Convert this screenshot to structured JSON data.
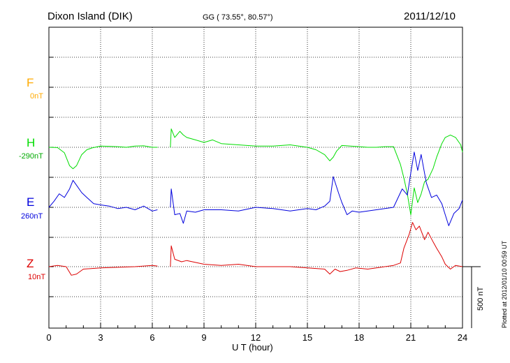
{
  "header": {
    "station": "Dixon Island (DIK)",
    "coords": "GG ( 73.55°,  80.57°)",
    "date": "2011/12/10"
  },
  "chart_data": {
    "type": "line",
    "title": "Dixon Island (DIK)",
    "xlabel": "U T (hour)",
    "ylabel": "",
    "xlim": [
      0,
      24
    ],
    "xticks": [
      "0",
      "3",
      "6",
      "9",
      "12",
      "15",
      "18",
      "21",
      "24"
    ],
    "grid": true,
    "scale_bar_label": "500 nT",
    "scale_bar_nT": 500,
    "data_gap_hours": [
      6.3,
      7.05
    ],
    "colors": {
      "F": "#ffaa00",
      "H": "#00dd00",
      "E": "#0000dd",
      "Z": "#dd0000"
    },
    "series": [
      {
        "name": "F",
        "baseline": "0nT",
        "x": [],
        "values": []
      },
      {
        "name": "H",
        "baseline": "-290nT",
        "x": [
          0,
          0.5,
          0.9,
          1.2,
          1.4,
          1.6,
          1.9,
          2.2,
          2.5,
          3.0,
          3.5,
          4.0,
          4.5,
          5.0,
          5.5,
          6.0,
          6.3,
          7.05,
          7.1,
          7.3,
          7.6,
          7.8,
          8.0,
          8.5,
          9.0,
          9.5,
          10.0,
          11.0,
          12.0,
          13.0,
          14.0,
          15.0,
          15.5,
          16.0,
          16.3,
          16.5,
          16.7,
          17.0,
          17.5,
          18.0,
          18.5,
          19.0,
          19.5,
          20.0,
          20.4,
          20.6,
          20.8,
          21.0,
          21.2,
          21.4,
          21.6,
          21.8,
          22.0,
          22.3,
          22.5,
          22.8,
          23.0,
          23.3,
          23.6,
          23.9,
          24.0
        ],
        "values": [
          0,
          -2,
          -45,
          -150,
          -175,
          -150,
          -60,
          -20,
          -5,
          10,
          8,
          5,
          0,
          10,
          12,
          0,
          0,
          0,
          150,
          80,
          130,
          100,
          80,
          60,
          40,
          60,
          30,
          20,
          10,
          10,
          20,
          0,
          -20,
          -60,
          -110,
          -80,
          -30,
          15,
          10,
          5,
          0,
          0,
          5,
          5,
          -140,
          -250,
          -380,
          -550,
          -330,
          -450,
          -380,
          -280,
          -260,
          -170,
          -80,
          30,
          80,
          100,
          80,
          20,
          -40
        ]
      },
      {
        "name": "E",
        "baseline": "260nT",
        "x": [
          0,
          0.3,
          0.6,
          0.9,
          1.2,
          1.4,
          1.6,
          1.9,
          2.2,
          2.6,
          3.0,
          3.5,
          4.0,
          4.5,
          5.0,
          5.5,
          6.0,
          6.3,
          7.05,
          7.1,
          7.3,
          7.6,
          7.8,
          8.0,
          8.5,
          9.0,
          10.0,
          11.0,
          12.0,
          13.0,
          14.0,
          15.0,
          15.5,
          16.0,
          16.3,
          16.5,
          16.8,
          17.0,
          17.3,
          17.6,
          18.0,
          19.0,
          20.0,
          20.5,
          20.8,
          21.0,
          21.2,
          21.4,
          21.6,
          21.9,
          22.2,
          22.5,
          22.8,
          23.0,
          23.2,
          23.5,
          23.8,
          24.0
        ],
        "values": [
          0,
          50,
          110,
          80,
          150,
          220,
          180,
          120,
          80,
          30,
          20,
          10,
          -10,
          0,
          -20,
          10,
          -30,
          -20,
          0,
          150,
          -60,
          -50,
          -130,
          -30,
          -40,
          -20,
          -20,
          -30,
          0,
          -10,
          -30,
          -10,
          -20,
          10,
          50,
          250,
          120,
          40,
          -60,
          -30,
          -40,
          -20,
          0,
          150,
          100,
          280,
          450,
          300,
          430,
          200,
          80,
          100,
          30,
          -60,
          -150,
          -50,
          -10,
          60
        ]
      },
      {
        "name": "Z",
        "baseline": "10nT",
        "x": [
          0,
          0.5,
          1.0,
          1.3,
          1.6,
          2.0,
          3.0,
          4.0,
          5.0,
          6.0,
          6.3,
          7.05,
          7.1,
          7.3,
          7.7,
          8.0,
          9.0,
          10.0,
          11.0,
          12.0,
          13.0,
          14.0,
          15.0,
          16.0,
          16.3,
          16.6,
          16.9,
          17.3,
          17.8,
          18.5,
          19.0,
          20.0,
          20.4,
          20.6,
          20.9,
          21.1,
          21.3,
          21.5,
          21.8,
          22.0,
          22.3,
          22.5,
          22.8,
          23.0,
          23.3,
          23.6,
          24.0
        ],
        "values": [
          0,
          10,
          0,
          -70,
          -60,
          -20,
          -10,
          -5,
          0,
          10,
          5,
          0,
          170,
          60,
          40,
          50,
          20,
          10,
          20,
          0,
          0,
          0,
          -10,
          -20,
          -60,
          -20,
          -40,
          -30,
          -10,
          -20,
          -10,
          10,
          30,
          150,
          260,
          360,
          300,
          330,
          220,
          280,
          200,
          150,
          80,
          20,
          -20,
          10,
          0
        ]
      }
    ]
  },
  "footer": {
    "plotted": "Plotted at 2012/01/10 00:59 UT"
  }
}
